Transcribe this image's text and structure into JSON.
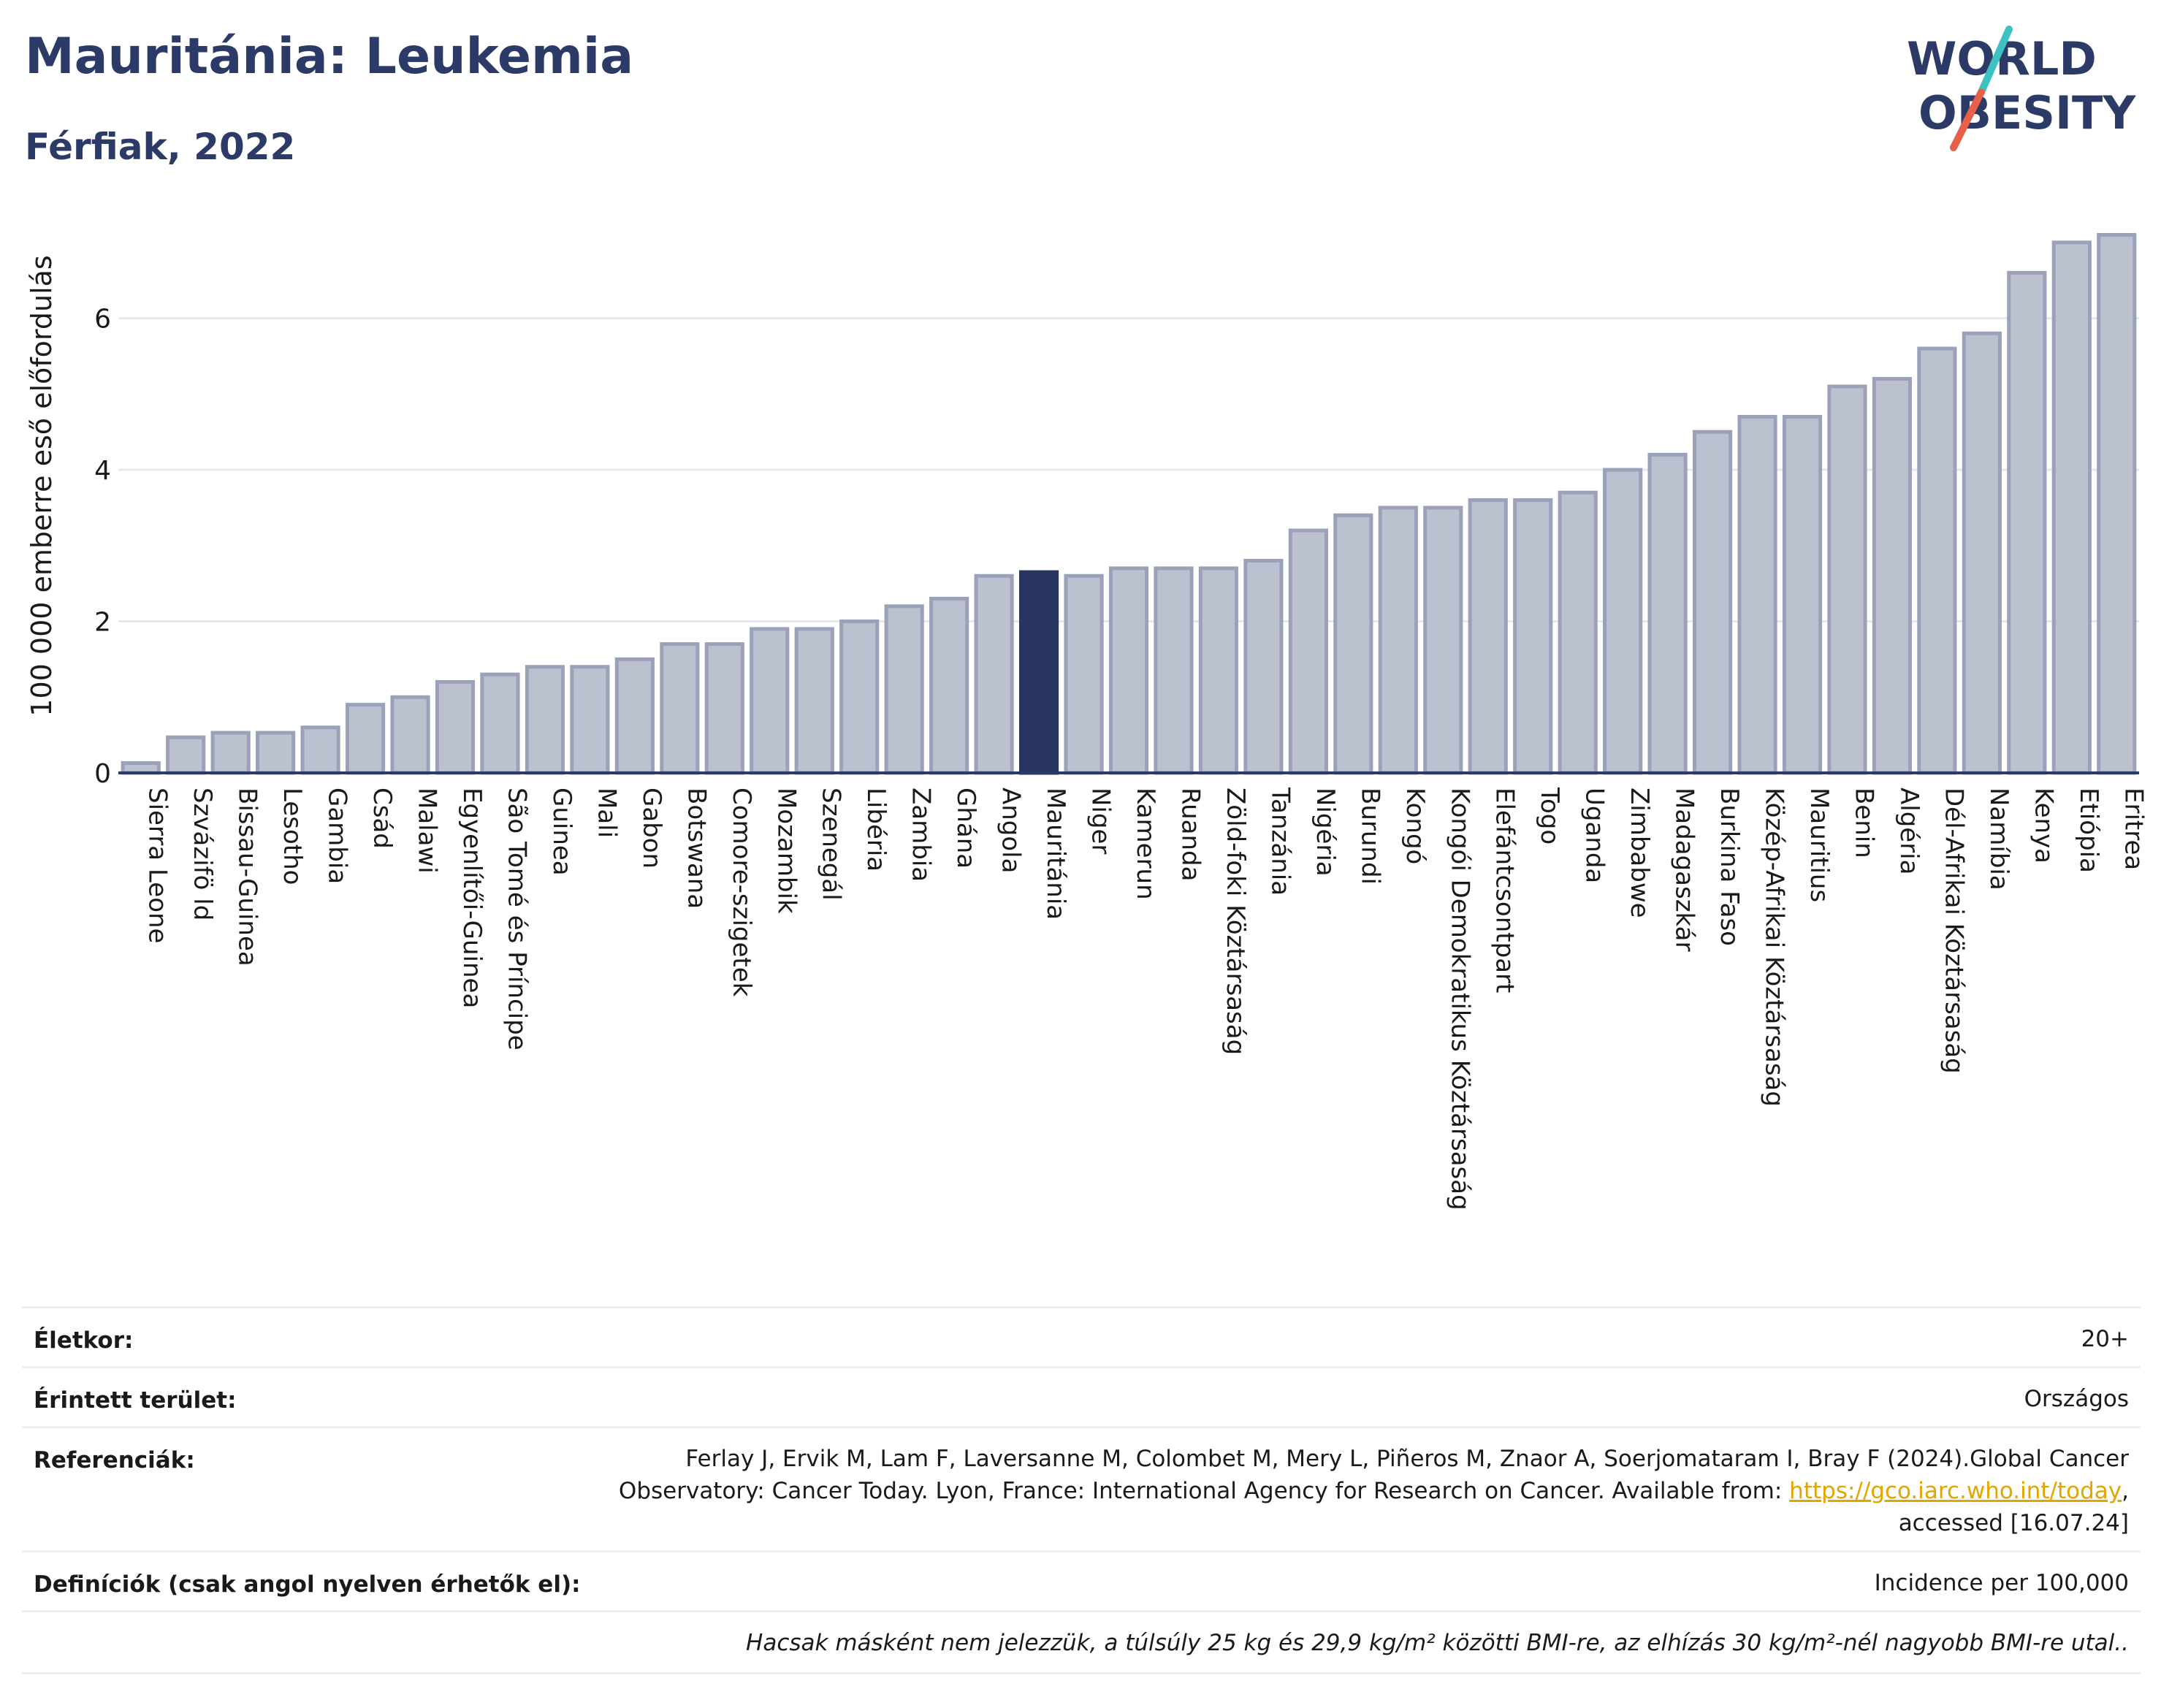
{
  "header": {
    "title": "Mauritánia: Leukemia",
    "subtitle": "Férfiak, 2022"
  },
  "logo": {
    "line1": "WORLD",
    "line2": "OBESITY",
    "slash_colors": [
      "#3ec1c1",
      "#e8604a"
    ],
    "text_color": "#2b3a67"
  },
  "colors": {
    "bar_default": "#bcc1d0",
    "bar_border": "#9aa1b8",
    "bar_highlight": "#283560",
    "axis": "#2b3a67",
    "grid": "#e6e8ef"
  },
  "chart_data": {
    "type": "bar",
    "ylabel": "100 000 emberre eső előfordulás",
    "ylim": [
      0,
      7.5
    ],
    "yticks": [
      0,
      2,
      4,
      6
    ],
    "grid": true,
    "highlight": "Mauritánia",
    "categories": [
      "Sierra Leone",
      "Szvázifö ld",
      "Bissau-Guinea",
      "Lesotho",
      "Gambia",
      "Csád",
      "Malawi",
      "Egyenlítői-Guinea",
      "São Tomé és Príncipe",
      "Guinea",
      "Mali",
      "Gabon",
      "Botswana",
      "Comore-szigetek",
      "Mozambik",
      "Szenegál",
      "Libéria",
      "Zambia",
      "Ghána",
      "Angola",
      "Mauritánia",
      "Niger",
      "Kamerun",
      "Ruanda",
      "Zöld-foki Köztársaság",
      "Tanzánia",
      "Nigéria",
      "Burundi",
      "Kongó",
      "Kongói Demokratikus Köztársaság",
      "Elefántcsontpart",
      "Togo",
      "Uganda",
      "Zimbabwe",
      "Madagaszkár",
      "Burkina Faso",
      "Közép-Afrikai Köztársaság",
      "Mauritius",
      "Benin",
      "Algéria",
      "Dél-Afrikai Köztársaság",
      "Namíbia",
      "Kenya",
      "Etiópia",
      "Eritrea"
    ],
    "values": [
      0.13,
      0.47,
      0.53,
      0.53,
      0.6,
      0.9,
      1.0,
      1.2,
      1.3,
      1.4,
      1.4,
      1.5,
      1.7,
      1.7,
      1.9,
      1.9,
      2.0,
      2.2,
      2.3,
      2.6,
      2.65,
      2.6,
      2.7,
      2.7,
      2.7,
      2.8,
      3.2,
      3.4,
      3.5,
      3.5,
      3.6,
      3.6,
      3.7,
      4.0,
      4.2,
      4.5,
      4.7,
      4.7,
      5.1,
      5.2,
      5.6,
      5.8,
      6.6,
      7.0,
      7.1
    ]
  },
  "info": {
    "age_label": "Életkor:",
    "age_value": "20+",
    "area_label": "Érintett terület:",
    "area_value": "Országos",
    "ref_label": "Referenciák:",
    "ref_line1": "Ferlay J, Ervik M, Lam F, Laversanne M, Colombet M, Mery L, Piñeros M, Znaor A, Soerjomataram I, Bray F (2024).Global Cancer",
    "ref_line2_pre": "Observatory: Cancer Today. Lyon, France: International Agency for Research on Cancer. Available from: ",
    "ref_link": "https://gco.iarc.who.int/today",
    "ref_line2_post": ",",
    "ref_line3": "accessed [16.07.24]",
    "def_label": "Definíciók (csak angol nyelven érhetők el):",
    "def_value": "Incidence per 100,000",
    "note": "Hacsak másként nem jelezzük, a túlsúly 25 kg és 29,9 kg/m² közötti BMI-re, az elhízás 30 kg/m²-nél nagyobb BMI-re utal.."
  }
}
